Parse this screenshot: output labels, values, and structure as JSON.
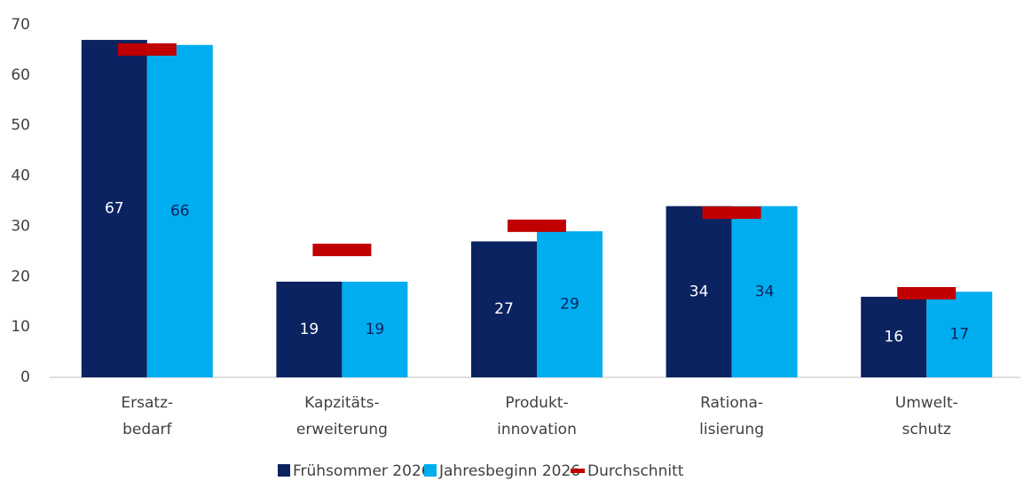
{
  "chart_data": {
    "type": "bar",
    "categories": [
      [
        "Ersatz-",
        "bedarf"
      ],
      [
        "Kapzitäts-",
        "erweiterung"
      ],
      [
        "Produkt-",
        "innovation"
      ],
      [
        "Rationa-",
        "lisierung"
      ],
      [
        "Umwelt-",
        "schutz"
      ]
    ],
    "series": [
      {
        "name": "Frühsommer 2026",
        "color": "#0b2360",
        "label_color": "#ffffff",
        "values": [
          67,
          19,
          27,
          34,
          16
        ]
      },
      {
        "name": "Jahresbeginn 2026",
        "color": "#00adef",
        "label_color": "#0b2360",
        "values": [
          66,
          19,
          29,
          34,
          17
        ]
      }
    ],
    "average": {
      "name": "Durchschnitt",
      "color": "#c00000",
      "values": [
        65.1,
        25.3,
        30.1,
        32.7,
        16.7
      ]
    },
    "ylim": [
      0,
      70
    ],
    "yticks": [
      0,
      10,
      20,
      30,
      40,
      50,
      60,
      70
    ],
    "grid": false
  }
}
